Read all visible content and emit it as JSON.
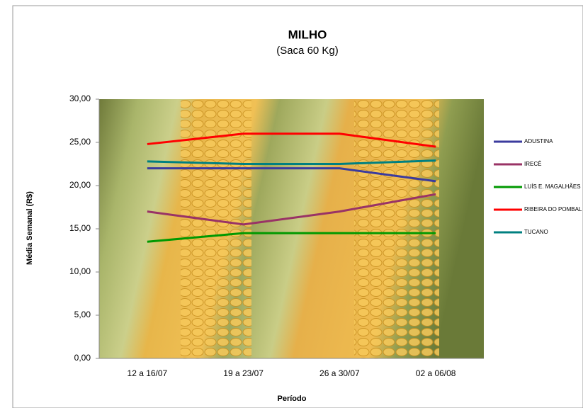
{
  "chart_data": {
    "type": "line",
    "title": "MILHO",
    "subtitle": "(Saca 60 Kg)",
    "x_label": "Período",
    "y_label": "Média Semanal (R$)",
    "categories": [
      "12 a 16/07",
      "19 a 23/07",
      "26 a 30/07",
      "02 a 06/08"
    ],
    "series": [
      {
        "name": "ADUSTINA",
        "color": "#3b3b9e",
        "values": [
          22,
          22,
          22,
          20.5
        ]
      },
      {
        "name": "IRECÊ",
        "color": "#993366",
        "values": [
          17,
          15.5,
          17,
          19
        ]
      },
      {
        "name": "LUÍS E. MAGALHÃES",
        "color": "#009900",
        "values": [
          13.5,
          14.5,
          14.5,
          14.5
        ]
      },
      {
        "name": "RIBEIRA DO POMBAL",
        "color": "#ff0000",
        "values": [
          24.8,
          26,
          26,
          24.5
        ]
      },
      {
        "name": "TUCANO",
        "color": "#008080",
        "values": [
          22.8,
          22.5,
          22.5,
          22.9
        ]
      }
    ],
    "ylim": [
      0,
      30
    ],
    "yticks": [
      {
        "value": 0,
        "label": "0,00"
      },
      {
        "value": 5,
        "label": "5,00"
      },
      {
        "value": 10,
        "label": "10,00"
      },
      {
        "value": 15,
        "label": "15,00"
      },
      {
        "value": 20,
        "label": "20,00"
      },
      {
        "value": 25,
        "label": "25,00"
      },
      {
        "value": 30,
        "label": "30,00"
      }
    ],
    "legend": "right"
  }
}
